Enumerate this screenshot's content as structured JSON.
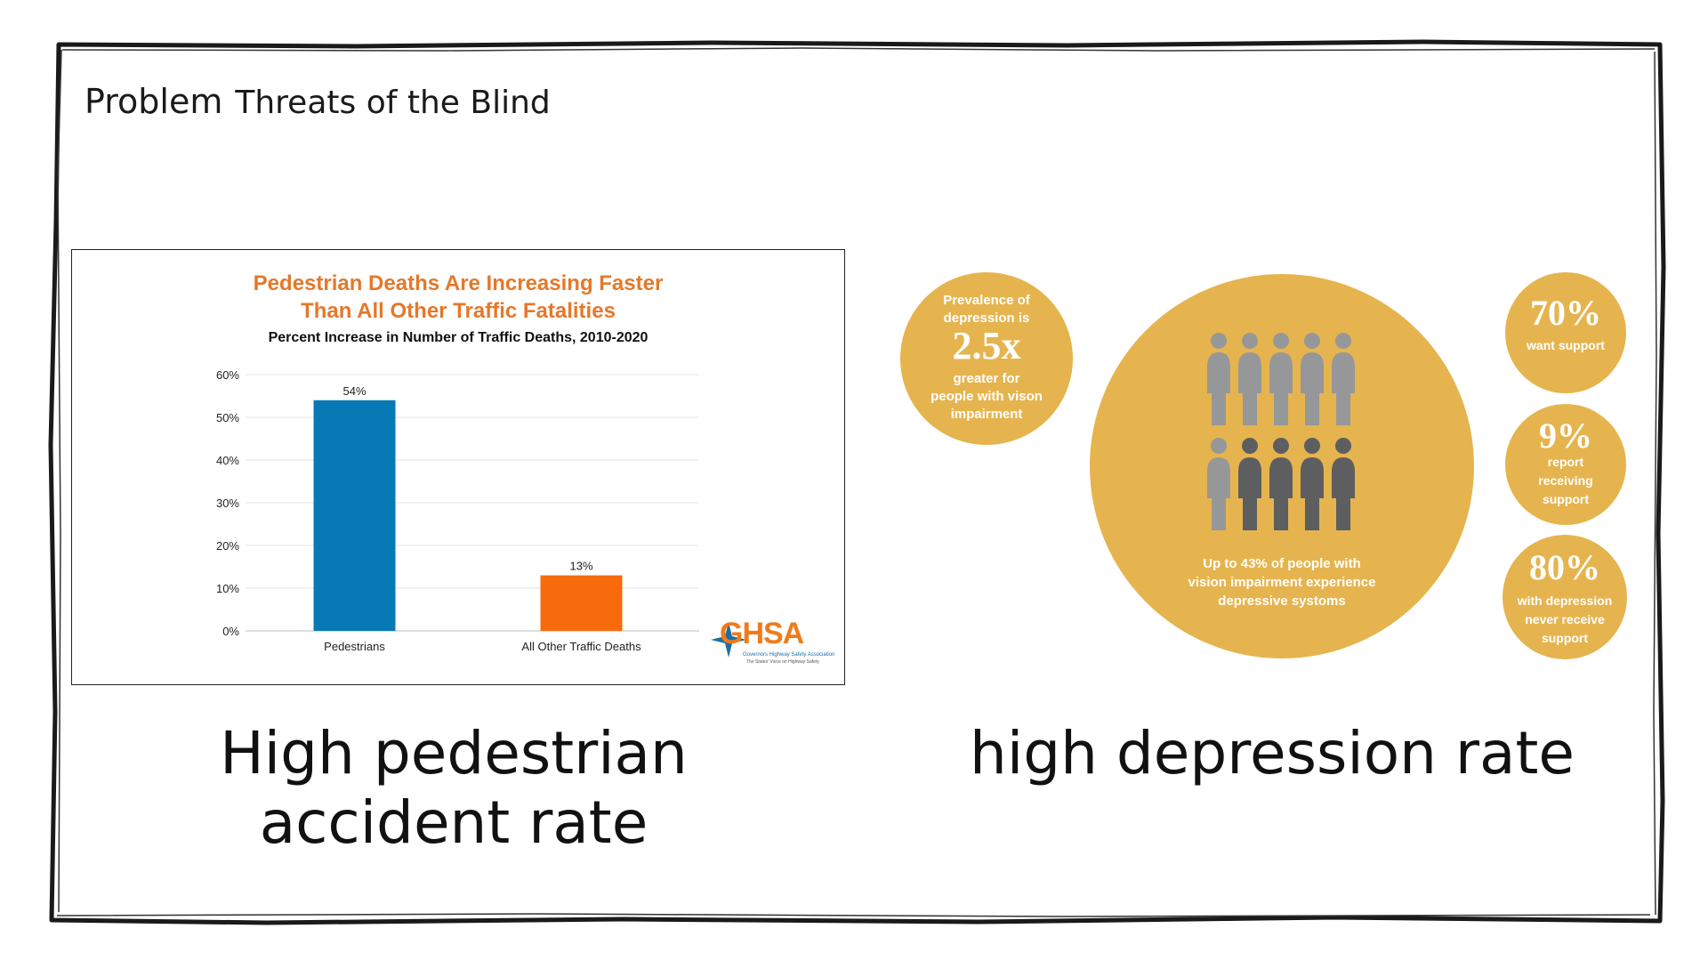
{
  "slide": {
    "section": "Problem",
    "title": "Threats of the Blind"
  },
  "chart_data": {
    "type": "bar",
    "title_line1": "Pedestrian Deaths Are Increasing Faster",
    "title_line2": "Than All Other Traffic Fatalities",
    "subtitle": "Percent Increase in Number of Traffic Deaths, 2010-2020",
    "categories": [
      "Pedestrians",
      "All Other Traffic Deaths"
    ],
    "values": [
      54,
      13
    ],
    "value_labels": [
      "54%",
      "13%"
    ],
    "colors": [
      "#0779b5",
      "#f76b0d"
    ],
    "ylim": [
      0,
      60
    ],
    "yticks": [
      "0%",
      "10%",
      "20%",
      "30%",
      "40%",
      "50%",
      "60%"
    ],
    "grid": true,
    "xlabel": "",
    "ylabel": ""
  },
  "logo": {
    "text": "GHSA",
    "tagline": "Governors Highway Safety Association",
    "tagline2": "The States' Voice on Highway Safety"
  },
  "captions": {
    "left": "High pedestrian accident rate",
    "right": "high depression rate"
  },
  "infographic": {
    "color": "#e6b44e",
    "prevalence": {
      "line1": "Prevalence of",
      "line2": "depression is",
      "big": "2.5x",
      "line3": "greater for",
      "line4": "people with vison",
      "line5": "impairment"
    },
    "main": {
      "line1": "Up to 43% of people with",
      "line2": "vision impairment experience",
      "line3": "depressive systoms",
      "people_total": 10,
      "people_highlighted": 4
    },
    "stat70": {
      "value": "70%",
      "label1": "want support"
    },
    "stat9": {
      "value": "9%",
      "label1": "report",
      "label2": "receiving",
      "label3": "support"
    },
    "stat80": {
      "value": "80%",
      "label1": "with depression",
      "label2": "never receive",
      "label3": "support"
    }
  }
}
